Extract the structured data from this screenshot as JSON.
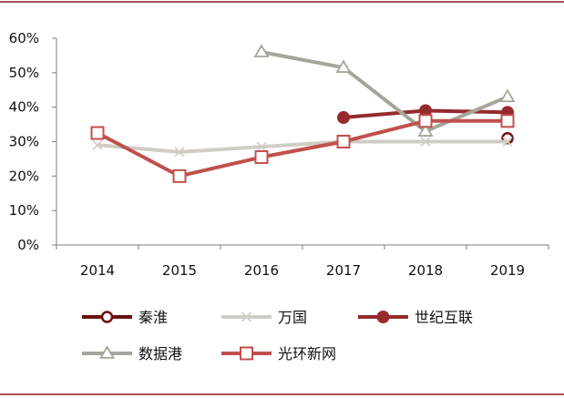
{
  "chart_data": {
    "type": "line",
    "title": "",
    "xlabel": "",
    "ylabel": "",
    "x": [
      "2014",
      "2015",
      "2016",
      "2017",
      "2018",
      "2019"
    ],
    "ylim": [
      0,
      0.6
    ],
    "yticks": [
      0,
      0.1,
      0.2,
      0.3,
      0.4,
      0.5,
      0.6
    ],
    "ytick_labels": [
      "0%",
      "10%",
      "20%",
      "30%",
      "40%",
      "50%",
      "60%"
    ],
    "grid": false,
    "legend_position": "bottom",
    "series": [
      {
        "name": "秦淮",
        "color": "#6e1010",
        "marker": "circle-open",
        "values": [
          null,
          null,
          null,
          null,
          null,
          0.31
        ]
      },
      {
        "name": "万国",
        "color": "#cfcdc5",
        "marker": "x",
        "values": [
          0.29,
          0.27,
          0.285,
          0.3,
          0.3,
          0.3
        ]
      },
      {
        "name": "世纪互联",
        "color": "#962a2d",
        "marker": "circle-filled",
        "values": [
          null,
          null,
          null,
          0.37,
          0.39,
          0.385
        ]
      },
      {
        "name": "数据港",
        "color": "#a6a59b",
        "marker": "triangle-open",
        "values": [
          null,
          null,
          0.56,
          0.515,
          0.33,
          0.43
        ]
      },
      {
        "name": "光环新网",
        "color": "#c0504d",
        "marker": "square-open",
        "values": [
          0.325,
          0.2,
          0.255,
          0.3,
          0.36,
          0.36
        ]
      }
    ]
  },
  "frame_color": "#8b1c1c"
}
